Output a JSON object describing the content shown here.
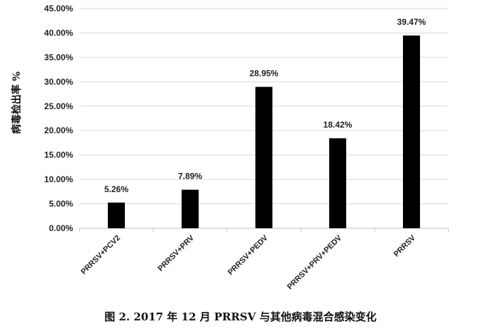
{
  "chart_data": {
    "type": "bar",
    "title": "",
    "xlabel": "",
    "ylabel": "病毒检出率 %",
    "ylim": [
      0,
      45
    ],
    "yticks": [
      "0.00%",
      "5.00%",
      "10.00%",
      "15.00%",
      "20.00%",
      "25.00%",
      "30.00%",
      "35.00%",
      "40.00%",
      "45.00%"
    ],
    "categories": [
      "PRRSV+PCV2",
      "PRRSV+PRV",
      "PRRSV+PEDV",
      "PRRSV+PRV+PEDV",
      "PRRSV"
    ],
    "values": [
      5.26,
      7.89,
      28.95,
      18.42,
      39.47
    ],
    "data_labels": [
      "5.26%",
      "7.89%",
      "28.95%",
      "18.42%",
      "39.47%"
    ],
    "grid": true,
    "legend": "none",
    "bar_color": "#000000"
  },
  "caption": "图 2. 2017 年 12 月 PRRSV 与其他病毒混合感染变化"
}
